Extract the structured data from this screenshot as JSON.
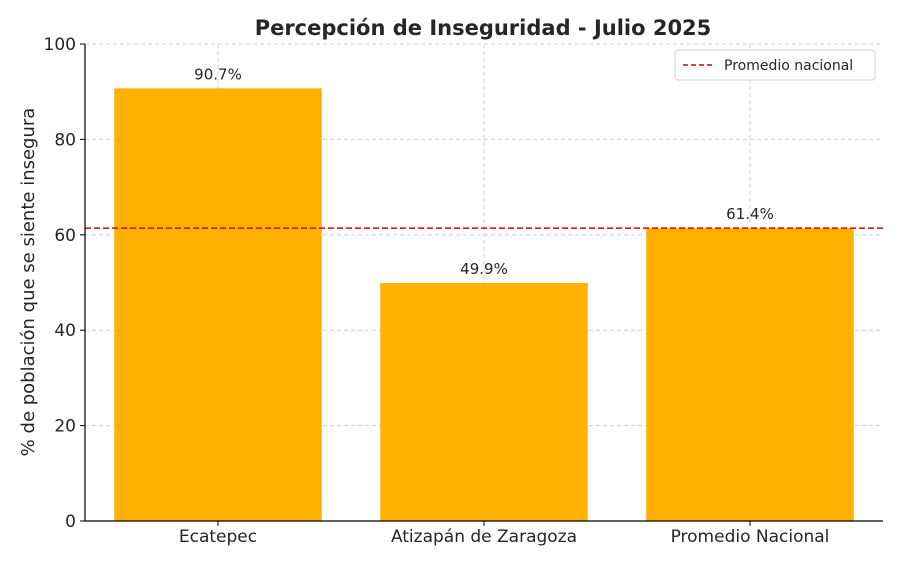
{
  "chart_data": {
    "type": "bar",
    "title": "Percepción de Inseguridad - Julio 2025",
    "xlabel": "",
    "ylabel": "% de población que se siente insegura",
    "categories": [
      "Ecatepec",
      "Atizapán de Zaragoza",
      "Promedio Nacional"
    ],
    "values": [
      90.7,
      49.9,
      61.4
    ],
    "value_labels": [
      "90.7%",
      "49.9%",
      "61.4%"
    ],
    "ylim": [
      0,
      100
    ],
    "yticks": [
      0,
      20,
      40,
      60,
      80,
      100
    ],
    "grid": true,
    "bar_color": "#FFB000",
    "reference_line": {
      "name": "Promedio nacional",
      "value": 61.4,
      "color": "#E00000",
      "style": "dashed"
    },
    "legend": {
      "placement": "top-right",
      "entries": [
        "Promedio nacional"
      ]
    }
  }
}
